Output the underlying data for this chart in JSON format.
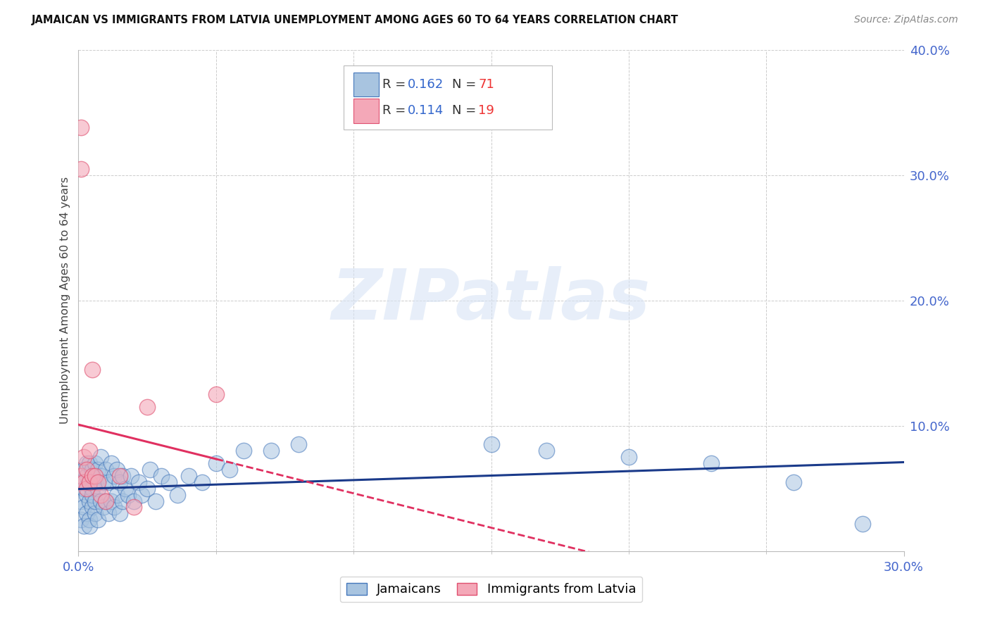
{
  "title": "JAMAICAN VS IMMIGRANTS FROM LATVIA UNEMPLOYMENT AMONG AGES 60 TO 64 YEARS CORRELATION CHART",
  "source": "Source: ZipAtlas.com",
  "ylabel": "Unemployment Among Ages 60 to 64 years",
  "legend_label1": "Jamaicans",
  "legend_label2": "Immigrants from Latvia",
  "legend_r1_label": "R = ",
  "legend_r1_val": "0.162",
  "legend_n1_label": "  N = ",
  "legend_n1_val": "71",
  "legend_r2_label": "R = ",
  "legend_r2_val": "0.114",
  "legend_n2_label": "  N = ",
  "legend_n2_val": "19",
  "xlim": [
    0.0,
    0.3
  ],
  "ylim": [
    0.0,
    0.4
  ],
  "yticks": [
    0.0,
    0.1,
    0.2,
    0.3,
    0.4
  ],
  "ytick_labels": [
    "",
    "10.0%",
    "20.0%",
    "30.0%",
    "40.0%"
  ],
  "xtick_left": "0.0%",
  "xtick_right": "30.0%",
  "color_blue_fill": "#A8C4E0",
  "color_blue_edge": "#4477BB",
  "color_pink_fill": "#F4A8B8",
  "color_pink_edge": "#E05070",
  "color_line_blue": "#1A3A8A",
  "color_line_pink": "#E03060",
  "grid_color": "#CCCCCC",
  "watermark_text": "ZIPatlas",
  "watermark_color": "#D8E4F5",
  "jamaicans_x": [
    0.001,
    0.001,
    0.001,
    0.002,
    0.002,
    0.002,
    0.002,
    0.003,
    0.003,
    0.003,
    0.003,
    0.004,
    0.004,
    0.004,
    0.004,
    0.004,
    0.005,
    0.005,
    0.005,
    0.005,
    0.006,
    0.006,
    0.006,
    0.006,
    0.007,
    0.007,
    0.007,
    0.008,
    0.008,
    0.008,
    0.009,
    0.009,
    0.01,
    0.01,
    0.011,
    0.011,
    0.012,
    0.012,
    0.013,
    0.013,
    0.014,
    0.014,
    0.015,
    0.015,
    0.016,
    0.016,
    0.017,
    0.018,
    0.019,
    0.02,
    0.022,
    0.023,
    0.025,
    0.026,
    0.028,
    0.03,
    0.033,
    0.036,
    0.04,
    0.045,
    0.05,
    0.055,
    0.06,
    0.07,
    0.08,
    0.15,
    0.17,
    0.2,
    0.23,
    0.26,
    0.285
  ],
  "jamaicans_y": [
    0.04,
    0.055,
    0.025,
    0.035,
    0.05,
    0.065,
    0.02,
    0.045,
    0.06,
    0.03,
    0.07,
    0.025,
    0.04,
    0.055,
    0.07,
    0.02,
    0.035,
    0.05,
    0.065,
    0.045,
    0.03,
    0.055,
    0.07,
    0.04,
    0.025,
    0.05,
    0.065,
    0.04,
    0.06,
    0.075,
    0.035,
    0.055,
    0.04,
    0.065,
    0.03,
    0.055,
    0.04,
    0.07,
    0.035,
    0.06,
    0.045,
    0.065,
    0.03,
    0.055,
    0.04,
    0.06,
    0.05,
    0.045,
    0.06,
    0.04,
    0.055,
    0.045,
    0.05,
    0.065,
    0.04,
    0.06,
    0.055,
    0.045,
    0.06,
    0.055,
    0.07,
    0.065,
    0.08,
    0.08,
    0.085,
    0.085,
    0.08,
    0.075,
    0.07,
    0.055,
    0.022
  ],
  "latvia_x": [
    0.001,
    0.001,
    0.001,
    0.002,
    0.002,
    0.003,
    0.003,
    0.004,
    0.004,
    0.005,
    0.005,
    0.006,
    0.007,
    0.008,
    0.01,
    0.015,
    0.02,
    0.025,
    0.05
  ],
  "latvia_y": [
    0.338,
    0.305,
    0.06,
    0.055,
    0.075,
    0.05,
    0.065,
    0.055,
    0.08,
    0.06,
    0.145,
    0.06,
    0.055,
    0.045,
    0.04,
    0.06,
    0.035,
    0.115,
    0.125
  ]
}
